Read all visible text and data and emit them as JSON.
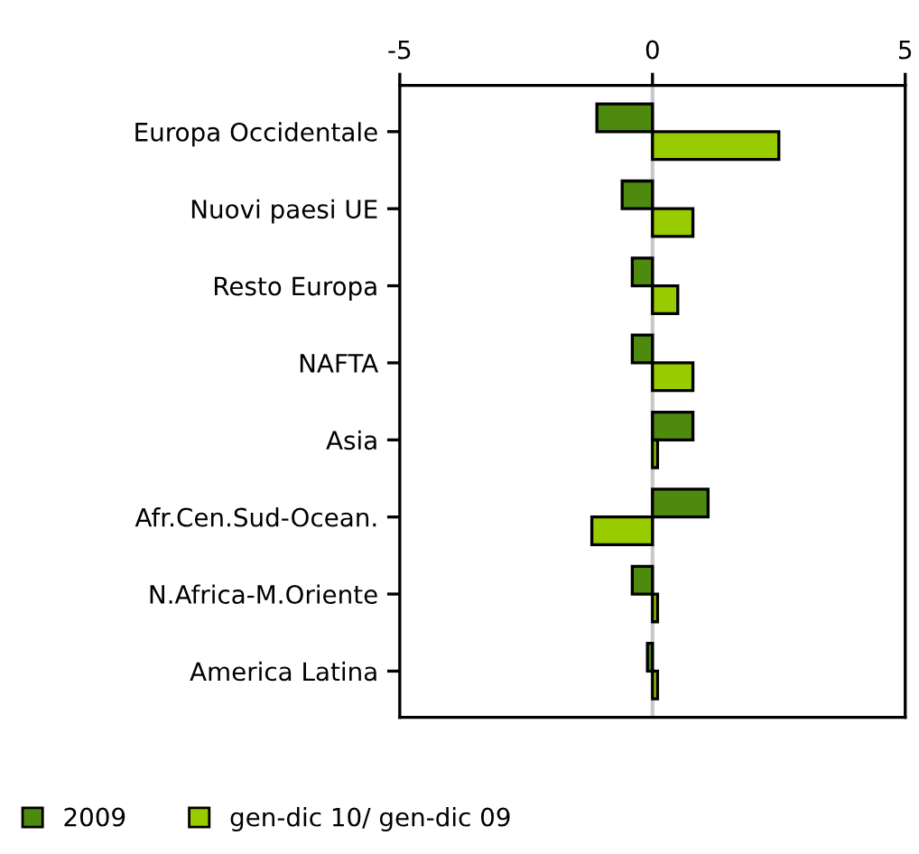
{
  "chart_data": {
    "type": "bar",
    "orientation": "horizontal",
    "categories": [
      "Europa Occidentale",
      "Nuovi paesi UE",
      "Resto Europa",
      "NAFTA",
      "Asia",
      "Afr.Cen.Sud-Ocean.",
      "N.Africa-M.Oriente",
      "America Latina"
    ],
    "series": [
      {
        "name": "2009",
        "color": "#4e8a0e",
        "values": [
          -1.1,
          -0.6,
          -0.4,
          -0.4,
          0.8,
          1.1,
          -0.4,
          -0.1
        ]
      },
      {
        "name": "gen-dic 10/ gen-dic 09",
        "color": "#99cc00",
        "values": [
          2.5,
          0.8,
          0.5,
          0.8,
          0.1,
          -1.2,
          0.1,
          0.1
        ]
      }
    ],
    "xlim": [
      -5,
      5
    ],
    "xticks": [
      {
        "value": -5,
        "label": "-5"
      },
      0,
      5
    ],
    "ref_lines": [
      {
        "axis": "x",
        "value": 0,
        "color": "#c8c8c8"
      }
    ],
    "legend": "bottom",
    "grid": false
  }
}
